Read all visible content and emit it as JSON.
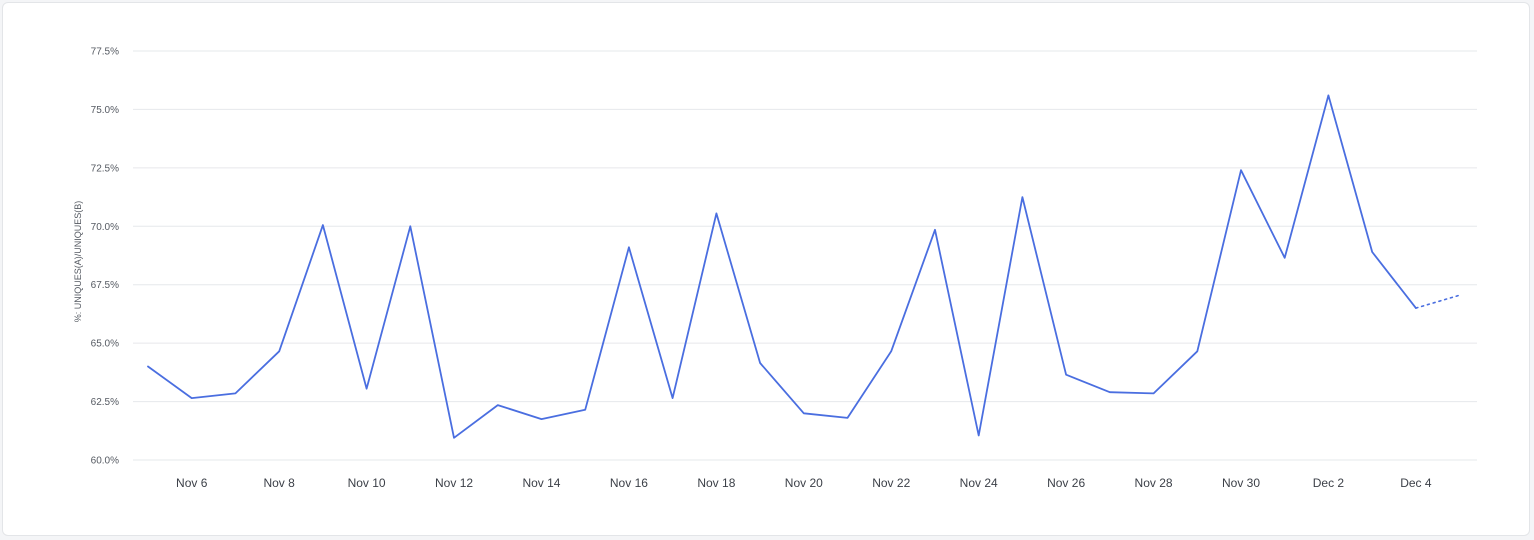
{
  "chart_data": {
    "type": "line",
    "title": "",
    "xlabel": "",
    "ylabel": "%: UNIQUES(A)/UNIQUES(B)",
    "ylim": [
      60.0,
      77.5
    ],
    "y_ticks": [
      "60.0%",
      "62.5%",
      "65.0%",
      "67.5%",
      "70.0%",
      "72.5%",
      "75.0%",
      "77.5%"
    ],
    "x_ticks": [
      "Nov 6",
      "Nov 8",
      "Nov 10",
      "Nov 12",
      "Nov 14",
      "Nov 16",
      "Nov 18",
      "Nov 20",
      "Nov 22",
      "Nov 24",
      "Nov 26",
      "Nov 28",
      "Nov 30",
      "Dec 2",
      "Dec 4"
    ],
    "grid": true,
    "line_color": "#4a6ee0",
    "series": [
      {
        "x": [
          "Nov 5",
          "Nov 6",
          "Nov 7",
          "Nov 8",
          "Nov 9",
          "Nov 10",
          "Nov 11",
          "Nov 12",
          "Nov 13",
          "Nov 14",
          "Nov 15",
          "Nov 16",
          "Nov 17",
          "Nov 18",
          "Nov 19",
          "Nov 20",
          "Nov 21",
          "Nov 22",
          "Nov 23",
          "Nov 24",
          "Nov 25",
          "Nov 26",
          "Nov 27",
          "Nov 28",
          "Nov 29",
          "Nov 30",
          "Dec 1",
          "Dec 2",
          "Dec 3",
          "Dec 4"
        ],
        "values": [
          64.0,
          62.65,
          62.85,
          64.65,
          70.05,
          63.05,
          70.0,
          60.95,
          62.35,
          61.75,
          62.15,
          69.1,
          62.65,
          70.55,
          64.15,
          62.0,
          61.8,
          64.65,
          69.85,
          61.05,
          71.25,
          63.65,
          62.9,
          62.85,
          64.65,
          72.4,
          68.65,
          75.6,
          68.9,
          66.5
        ]
      },
      {
        "style": "dotted",
        "x": [
          "Dec 4",
          "Dec 5"
        ],
        "values": [
          66.5,
          67.05
        ]
      }
    ]
  }
}
